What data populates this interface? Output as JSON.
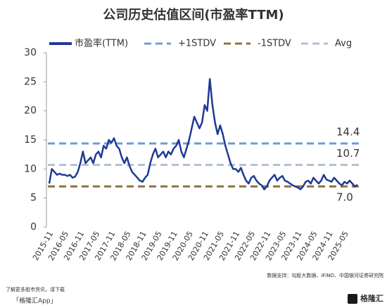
{
  "chart_data": {
    "type": "line",
    "title": "公司历史估值区间(市盈率TTM)",
    "x": [
      "2015-11",
      "2015-12",
      "2016-01",
      "2016-02",
      "2016-03",
      "2016-04",
      "2016-05",
      "2016-06",
      "2016-07",
      "2016-08",
      "2016-09",
      "2016-10",
      "2016-11",
      "2016-12",
      "2017-01",
      "2017-02",
      "2017-03",
      "2017-04",
      "2017-05",
      "2017-06",
      "2017-07",
      "2017-08",
      "2017-09",
      "2017-10",
      "2017-11",
      "2017-12",
      "2018-01",
      "2018-02",
      "2018-03",
      "2018-04",
      "2018-05",
      "2018-06",
      "2018-07",
      "2018-08",
      "2018-09",
      "2018-10",
      "2018-11",
      "2018-12",
      "2019-01",
      "2019-02",
      "2019-03",
      "2019-04",
      "2019-05",
      "2019-06",
      "2019-07",
      "2019-08",
      "2019-09",
      "2019-10",
      "2019-11",
      "2019-12",
      "2020-01",
      "2020-02",
      "2020-03",
      "2020-04",
      "2020-05",
      "2020-06",
      "2020-07",
      "2020-08",
      "2020-09",
      "2020-10",
      "2020-11",
      "2020-12",
      "2021-01",
      "2021-02",
      "2021-03",
      "2021-04",
      "2021-05",
      "2021-06",
      "2021-07",
      "2021-08",
      "2021-09",
      "2021-10",
      "2021-11",
      "2021-12",
      "2022-01",
      "2022-02",
      "2022-03",
      "2022-04",
      "2022-05",
      "2022-06",
      "2022-07",
      "2022-08",
      "2022-09",
      "2022-10",
      "2022-11",
      "2022-12",
      "2023-01",
      "2023-02",
      "2023-03",
      "2023-04",
      "2023-05",
      "2023-06",
      "2023-07",
      "2023-08",
      "2023-09",
      "2023-10",
      "2023-11",
      "2023-12",
      "2024-01",
      "2024-02",
      "2024-03",
      "2024-04",
      "2024-05",
      "2024-06",
      "2024-07",
      "2024-08",
      "2024-09",
      "2024-10",
      "2024-11",
      "2024-12",
      "2025-01",
      "2025-02",
      "2025-03",
      "2025-04",
      "2025-05",
      "2025-06",
      "2025-07",
      "2025-08",
      "2025-09",
      "2025-10"
    ],
    "xticks": [
      "2015-11",
      "2016-05",
      "2016-11",
      "2017-05",
      "2017-11",
      "2018-05",
      "2018-11",
      "2019-05",
      "2019-11",
      "2020-05",
      "2020-11",
      "2021-05",
      "2021-11",
      "2022-05",
      "2022-11",
      "2023-05",
      "2023-11",
      "2024-05",
      "2024-11",
      "2025-05"
    ],
    "series": [
      {
        "name": "市盈率(TTM)",
        "color": "#1f3a93",
        "values": [
          7.5,
          10,
          9.5,
          9,
          9.2,
          9,
          9,
          8.8,
          9,
          8.5,
          8.7,
          9.5,
          11,
          13,
          11,
          11.5,
          12,
          11,
          12.5,
          13,
          12,
          14,
          13.5,
          15,
          14.5,
          15.3,
          14,
          13.5,
          12,
          11,
          12,
          10.5,
          9.5,
          9,
          8.5,
          8,
          7.8,
          8.5,
          9,
          11,
          12.5,
          13.5,
          12,
          12.5,
          13,
          12,
          13,
          12.5,
          13.5,
          14,
          15,
          13,
          12,
          13.5,
          15,
          17,
          19,
          18,
          17,
          18,
          21,
          20,
          25.5,
          21,
          18,
          16,
          17.5,
          16,
          14,
          12.5,
          11,
          10,
          10,
          9.5,
          10.2,
          9,
          8,
          7.5,
          8.5,
          8.8,
          8,
          7.5,
          7.2,
          6.5,
          7,
          8,
          8.5,
          9,
          8,
          8.5,
          8.8,
          8,
          7.8,
          7.5,
          7.2,
          7,
          6.8,
          6.5,
          7,
          7.8,
          8,
          7.5,
          8.5,
          8,
          7.5,
          8,
          9,
          8.2,
          8,
          7.8,
          8.5,
          8,
          7.5,
          7.2,
          7.8,
          7.5,
          8,
          7.5,
          7,
          7.3
        ]
      }
    ],
    "reference_lines": [
      {
        "name": "+1STDV",
        "color": "#6f9bd6",
        "value": 14.4,
        "label": "14.4"
      },
      {
        "name": "-1STDV",
        "color": "#8c7240",
        "value": 7.0,
        "label": "7.0"
      },
      {
        "name": "Avg",
        "color": "#b3c2d4",
        "value": 10.7,
        "label": "10.7"
      }
    ],
    "ylim": [
      0,
      30
    ],
    "yticks": [
      0,
      5,
      10,
      15,
      20,
      25,
      30
    ]
  },
  "footer": {
    "source": "数据支持：勾股大数据、iFIND、中国银河证券研究院",
    "promo": "了解更多股市资讯，请下载",
    "app": "「格隆汇App」",
    "logo": "格隆汇"
  }
}
